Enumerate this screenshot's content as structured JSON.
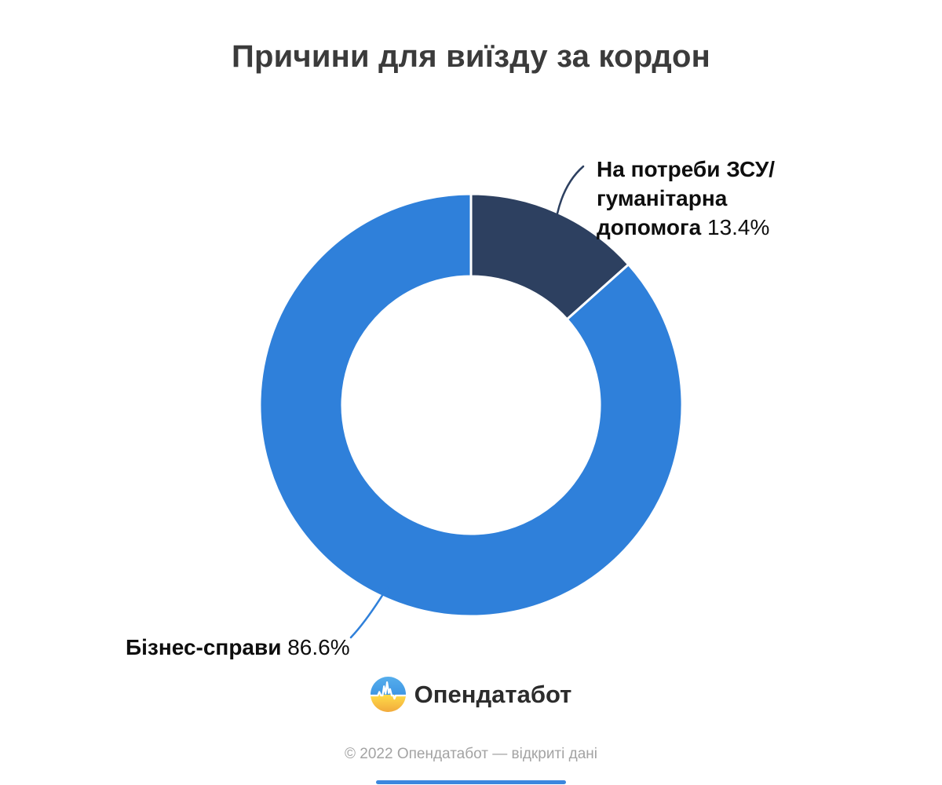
{
  "title": "Причини для виїзду за кордон",
  "chart_data": {
    "type": "pie",
    "subtype": "donut",
    "title": "Причини для виїзду за кордон",
    "labels": [
      "На потреби ЗСУ/гуманітарна допомога",
      "Бізнес-справи"
    ],
    "values": [
      13.4,
      86.6
    ],
    "value_labels": [
      "13.4%",
      "86.6%"
    ],
    "unit": "%",
    "colors": [
      "#2d4060",
      "#2f80da"
    ],
    "hole_ratio": 0.61,
    "start_angle_deg": 0,
    "direction": "clockwise",
    "legend": "none",
    "callout_labels": true,
    "segment_gap_color": "#ffffff"
  },
  "logo": {
    "text": "Опендатабот",
    "colors": {
      "blue_top": "#55aeec",
      "blue_bottom": "#3f97e4",
      "yellow_top": "#ffdc49",
      "yellow_bottom": "#f2aa3c",
      "pulse": "#ffffff"
    }
  },
  "footer": {
    "copyright": "© 2022 Опендатабот — відкриті дані",
    "accent_bar_color": "#3b87de"
  }
}
